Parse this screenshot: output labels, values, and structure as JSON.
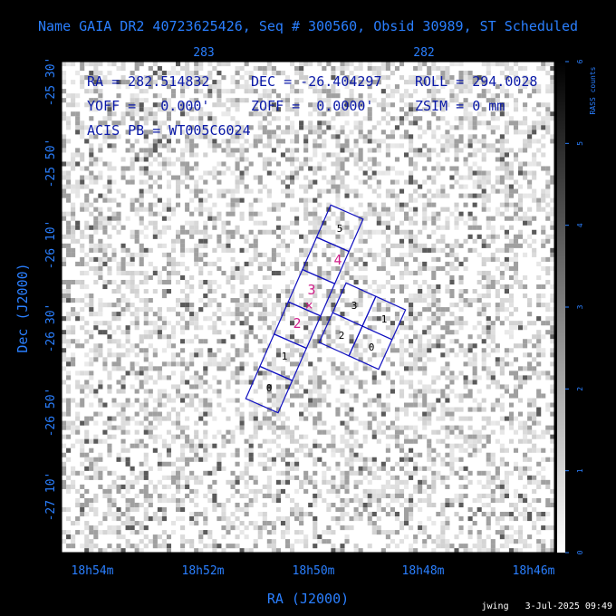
{
  "title": "Name GAIA DR2 40723625426, Seq # 300560, Obsid 30989, ST Scheduled",
  "info": [
    "RA = 282.514832",
    "DEC = -26.404297",
    "ROLL = 294.0028",
    "YOFF =   0.000'",
    "ZOFF =  0.0000'",
    "ZSIM = 0 mm",
    "ACIS PB = WT005C6024"
  ],
  "top_axis": [
    "283",
    "282"
  ],
  "left_axis": [
    "-25 30'",
    "-25 50'",
    "-26 10'",
    "-26 30'",
    "-26 50'",
    "-27 10'"
  ],
  "bottom_axis": [
    "18h54m",
    "18h52m",
    "18h50m",
    "18h48m",
    "18h46m"
  ],
  "x_axis_title": "RA (J2000)",
  "y_axis_title": "Dec (J2000)",
  "colorbar": {
    "label": "RASS counts",
    "ticks": [
      0,
      1,
      2,
      3,
      4,
      5,
      6
    ]
  },
  "s_chips": [
    "0",
    "1",
    "5"
  ],
  "s_chips_highlight": [
    "2",
    "3",
    "4"
  ],
  "i_chips": [
    "3",
    "1",
    "2",
    "0"
  ],
  "marker": "×",
  "footer": "jwing   3-Jul-2025 09:49"
}
